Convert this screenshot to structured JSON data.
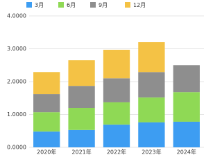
{
  "chart_data": {
    "type": "stacked_bar",
    "categories": [
      "2020年",
      "2021年",
      "2022年",
      "2023年",
      "2024年"
    ],
    "series": [
      {
        "name": "3月",
        "color": "#3d9df2",
        "values": [
          0.48,
          0.53,
          0.69,
          0.76,
          0.78
        ]
      },
      {
        "name": "6月",
        "color": "#8fd955",
        "values": [
          0.59,
          0.67,
          0.68,
          0.76,
          0.9
        ]
      },
      {
        "name": "9月",
        "color": "#8e8e8e",
        "values": [
          0.55,
          0.67,
          0.73,
          0.77,
          0.82
        ]
      },
      {
        "name": "12月",
        "color": "#f4c245",
        "values": [
          0.67,
          0.78,
          0.87,
          0.91,
          null
        ]
      }
    ],
    "ylim": [
      0,
      4
    ],
    "yticks": [
      {
        "value": 0,
        "label": "0.0000"
      },
      {
        "value": 1,
        "label": "1.0000"
      },
      {
        "value": 2,
        "label": "2.0000"
      },
      {
        "value": 3,
        "label": "3.0000"
      },
      {
        "value": 4,
        "label": "4.0000"
      }
    ],
    "grid": true,
    "legend": "top"
  }
}
